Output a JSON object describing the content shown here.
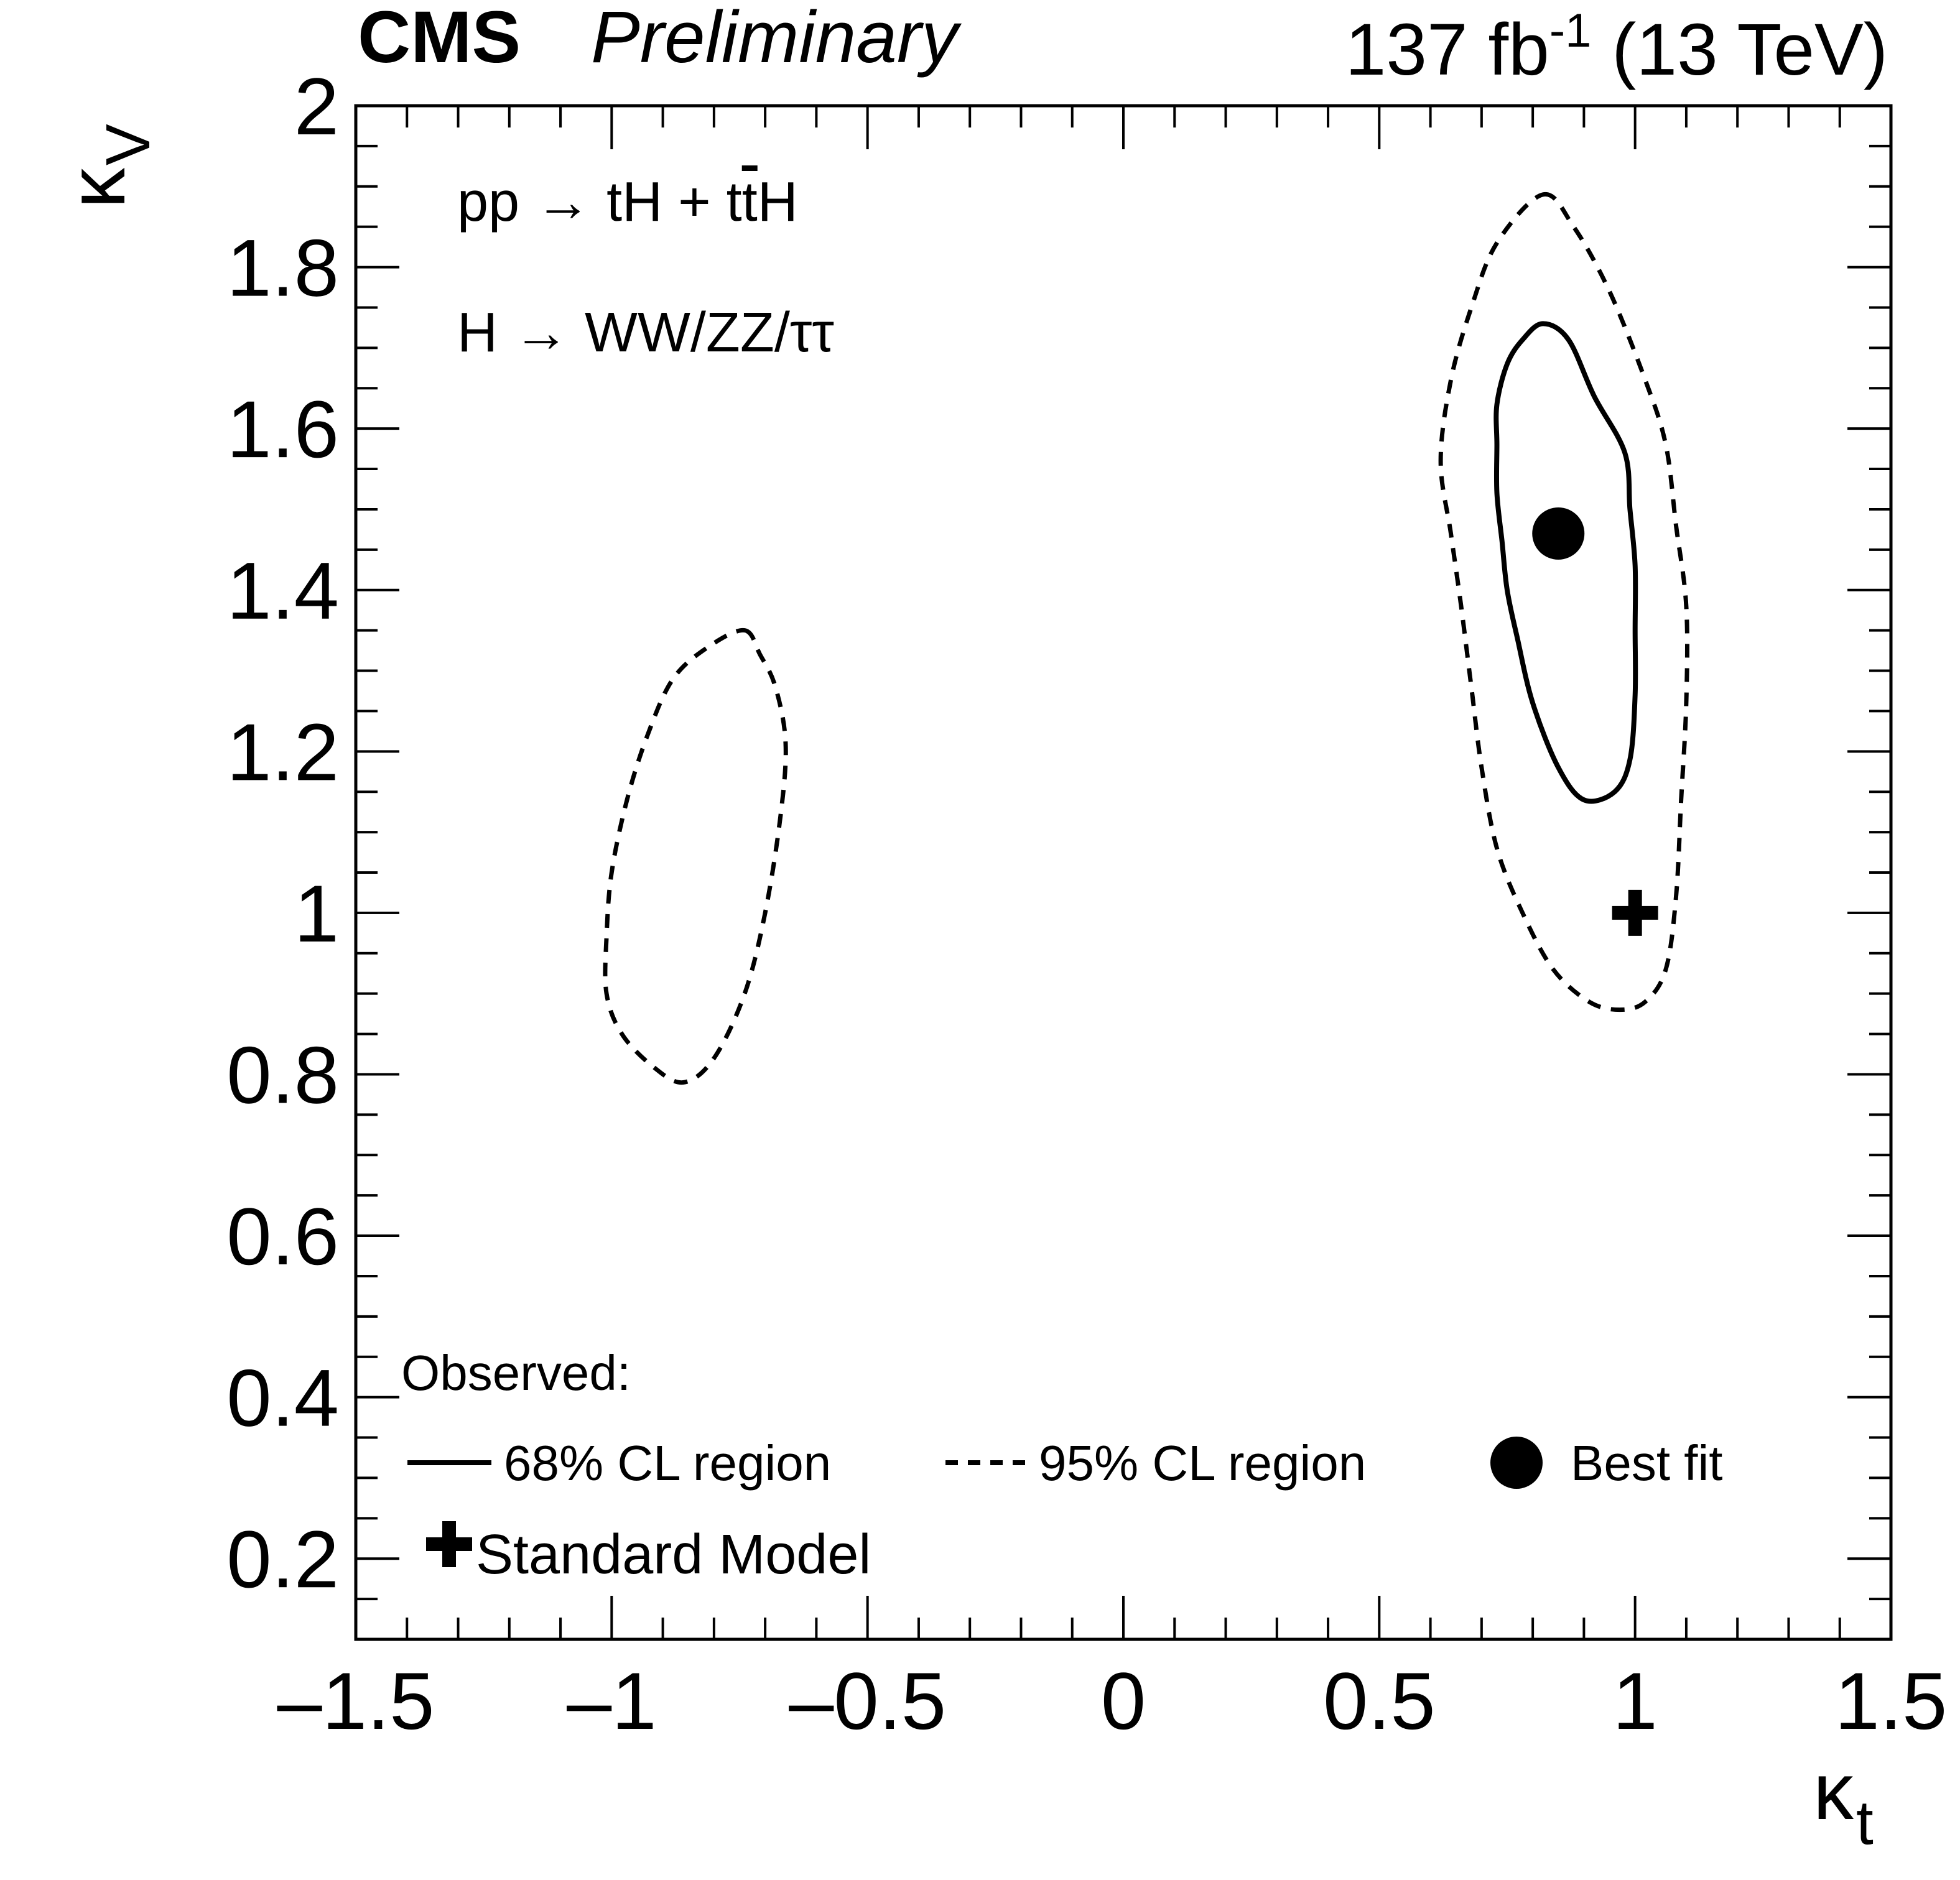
{
  "header": {
    "experiment": "CMS",
    "status": "Preliminary",
    "lumi_main": "137 fb",
    "lumi_exp": "-1",
    "lumi_energy": " (13 TeV)"
  },
  "process": {
    "line1": "pp → tH + t",
    "line1_tbar": "t",
    "line1_end": "H",
    "line2": "H → WW/ZZ/ττ"
  },
  "legend": {
    "title": "Observed:",
    "cl68": "68% CL region",
    "cl95": "95% CL region",
    "best_fit": "Best fit",
    "sm": "Standard Model"
  },
  "chart_data": {
    "type": "scatter",
    "title": "",
    "xlabel": "κ",
    "xlabel_sub": "t",
    "ylabel": "κ",
    "ylabel_sub": "V",
    "xlim": [
      -1.5,
      1.5
    ],
    "ylim": [
      0.1,
      2.0
    ],
    "x_ticks": [
      -1.5,
      -1,
      -0.5,
      0,
      0.5,
      1,
      1.5
    ],
    "x_tick_labels": [
      "–1.5",
      "–1",
      "–0.5",
      "0",
      "0.5",
      "1",
      "1.5"
    ],
    "y_ticks": [
      0.2,
      0.4,
      0.6,
      0.8,
      1,
      1.2,
      1.4,
      1.6,
      1.8,
      2
    ],
    "y_tick_labels": [
      "0.2",
      "0.4",
      "0.6",
      "0.8",
      "1",
      "1.2",
      "1.4",
      "1.6",
      "1.8",
      "2"
    ],
    "grid": false,
    "best_fit": {
      "x": 0.85,
      "y": 1.47
    },
    "standard_model": {
      "x": 1.0,
      "y": 1.0
    },
    "contour_68": [
      [
        0.82,
        1.73
      ],
      [
        0.87,
        1.71
      ],
      [
        0.92,
        1.64
      ],
      [
        0.98,
        1.57
      ],
      [
        0.99,
        1.5
      ],
      [
        1.0,
        1.43
      ],
      [
        1.0,
        1.35
      ],
      [
        1.0,
        1.27
      ],
      [
        0.99,
        1.19
      ],
      [
        0.96,
        1.15
      ],
      [
        0.9,
        1.14
      ],
      [
        0.85,
        1.18
      ],
      [
        0.8,
        1.26
      ],
      [
        0.77,
        1.34
      ],
      [
        0.75,
        1.4
      ],
      [
        0.74,
        1.46
      ],
      [
        0.73,
        1.52
      ],
      [
        0.73,
        1.58
      ],
      [
        0.73,
        1.63
      ],
      [
        0.75,
        1.68
      ],
      [
        0.78,
        1.71
      ],
      [
        0.82,
        1.73
      ]
    ],
    "contour_95_right": [
      [
        0.82,
        1.89
      ],
      [
        0.88,
        1.85
      ],
      [
        0.95,
        1.77
      ],
      [
        1.02,
        1.66
      ],
      [
        1.06,
        1.58
      ],
      [
        1.08,
        1.48
      ],
      [
        1.1,
        1.38
      ],
      [
        1.1,
        1.26
      ],
      [
        1.09,
        1.14
      ],
      [
        1.08,
        1.02
      ],
      [
        1.06,
        0.93
      ],
      [
        1.02,
        0.89
      ],
      [
        0.97,
        0.88
      ],
      [
        0.91,
        0.89
      ],
      [
        0.84,
        0.93
      ],
      [
        0.78,
        1.0
      ],
      [
        0.73,
        1.08
      ],
      [
        0.7,
        1.18
      ],
      [
        0.68,
        1.28
      ],
      [
        0.66,
        1.38
      ],
      [
        0.64,
        1.47
      ],
      [
        0.62,
        1.56
      ],
      [
        0.64,
        1.66
      ],
      [
        0.68,
        1.75
      ],
      [
        0.73,
        1.83
      ],
      [
        0.82,
        1.89
      ]
    ],
    "contour_95_left": [
      [
        -0.74,
        1.35
      ],
      [
        -0.71,
        1.32
      ],
      [
        -0.68,
        1.28
      ],
      [
        -0.66,
        1.21
      ],
      [
        -0.67,
        1.12
      ],
      [
        -0.7,
        1.0
      ],
      [
        -0.74,
        0.9
      ],
      [
        -0.8,
        0.82
      ],
      [
        -0.86,
        0.79
      ],
      [
        -0.92,
        0.81
      ],
      [
        -0.98,
        0.85
      ],
      [
        -1.01,
        0.9
      ],
      [
        -1.01,
        0.97
      ],
      [
        -1.0,
        1.05
      ],
      [
        -0.97,
        1.14
      ],
      [
        -0.93,
        1.22
      ],
      [
        -0.88,
        1.29
      ],
      [
        -0.81,
        1.33
      ],
      [
        -0.74,
        1.35
      ]
    ]
  }
}
